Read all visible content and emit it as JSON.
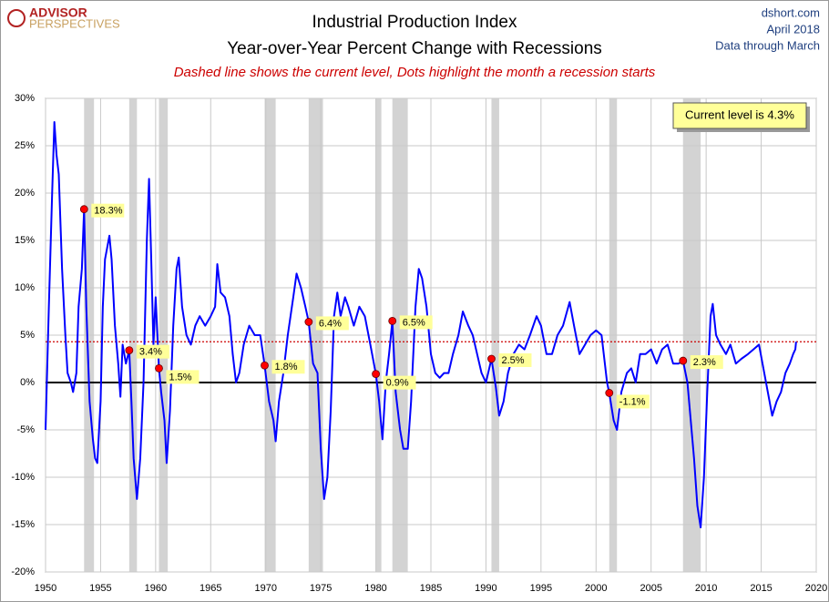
{
  "chart_data": {
    "type": "line",
    "title": "Industrial Production Index",
    "subtitle": "Year-over-Year Percent Change with Recessions",
    "note": "Dashed line shows the current level, Dots highlight the month a recession starts",
    "logo": [
      "ADVISOR",
      "PERSPECTIVES"
    ],
    "source": [
      "dshort.com",
      "April 2018",
      "Data through March"
    ],
    "annotation": "Current level is 4.3%",
    "current_level": 4.3,
    "current_level_color": "#cc0000",
    "color": "#0000ff",
    "grid": true,
    "xlim": [
      1950,
      2020
    ],
    "xticks": [
      1950,
      1955,
      1960,
      1965,
      1970,
      1975,
      1980,
      1985,
      1990,
      1995,
      2000,
      2005,
      2010,
      2015,
      2020
    ],
    "ylim": [
      -20,
      30
    ],
    "yticks": [
      {
        "value": -20,
        "label": "-20%"
      },
      {
        "value": -15,
        "label": "-15%"
      },
      {
        "value": -10,
        "label": "-10%"
      },
      {
        "value": -5,
        "label": "-5%"
      },
      {
        "value": 0,
        "label": "0%"
      },
      {
        "value": 5,
        "label": "5%"
      },
      {
        "value": 10,
        "label": "10%"
      },
      {
        "value": 15,
        "label": "15%"
      },
      {
        "value": 20,
        "label": "20%"
      },
      {
        "value": 25,
        "label": "25%"
      },
      {
        "value": 30,
        "label": "30%"
      }
    ],
    "recessions": [
      [
        1953.5,
        1954.4
      ],
      [
        1957.6,
        1958.3
      ],
      [
        1960.3,
        1961.1
      ],
      [
        1969.9,
        1970.9
      ],
      [
        1973.9,
        1975.2
      ],
      [
        1980.0,
        1980.5
      ],
      [
        1981.5,
        1982.9
      ],
      [
        1990.5,
        1991.2
      ],
      [
        2001.2,
        2001.9
      ],
      [
        2007.9,
        2009.5
      ]
    ],
    "x": [
      1950.0,
      1950.3,
      1950.6,
      1950.8,
      1951.0,
      1951.2,
      1951.5,
      1951.8,
      1952.0,
      1952.3,
      1952.5,
      1952.8,
      1953.0,
      1953.3,
      1953.5,
      1953.7,
      1954.0,
      1954.3,
      1954.5,
      1954.7,
      1955.0,
      1955.2,
      1955.4,
      1955.8,
      1956.0,
      1956.3,
      1956.6,
      1956.8,
      1957.0,
      1957.3,
      1957.6,
      1957.8,
      1958.0,
      1958.3,
      1958.6,
      1958.9,
      1959.2,
      1959.4,
      1959.6,
      1959.8,
      1960.0,
      1960.3,
      1960.5,
      1960.8,
      1961.0,
      1961.3,
      1961.6,
      1961.9,
      1962.1,
      1962.4,
      1962.8,
      1963.2,
      1963.6,
      1964.0,
      1964.5,
      1965.0,
      1965.4,
      1965.6,
      1965.9,
      1966.3,
      1966.7,
      1967.0,
      1967.3,
      1967.6,
      1968.0,
      1968.5,
      1969.0,
      1969.5,
      1969.9,
      1970.3,
      1970.7,
      1970.9,
      1971.2,
      1971.6,
      1972.0,
      1972.5,
      1972.8,
      1973.2,
      1973.6,
      1973.9,
      1974.3,
      1974.7,
      1975.0,
      1975.3,
      1975.6,
      1975.9,
      1976.2,
      1976.5,
      1976.8,
      1977.2,
      1977.5,
      1978.0,
      1978.5,
      1979.0,
      1979.5,
      1980.0,
      1980.3,
      1980.6,
      1980.9,
      1981.2,
      1981.5,
      1981.8,
      1982.2,
      1982.5,
      1982.9,
      1983.2,
      1983.6,
      1983.9,
      1984.2,
      1984.6,
      1985.0,
      1985.4,
      1985.8,
      1986.2,
      1986.6,
      1987.0,
      1987.5,
      1987.9,
      1988.4,
      1988.8,
      1989.2,
      1989.6,
      1990.0,
      1990.5,
      1990.9,
      1991.2,
      1991.6,
      1992.0,
      1992.5,
      1993.0,
      1993.5,
      1994.0,
      1994.6,
      1995.0,
      1995.5,
      1996.0,
      1996.5,
      1997.0,
      1997.6,
      1998.0,
      1998.5,
      1999.0,
      1999.5,
      2000.0,
      2000.5,
      2001.0,
      2001.2,
      2001.6,
      2001.9,
      2002.3,
      2002.8,
      2003.2,
      2003.6,
      2004.0,
      2004.5,
      2005.0,
      2005.5,
      2006.0,
      2006.5,
      2007.0,
      2007.5,
      2007.9,
      2008.3,
      2008.6,
      2008.9,
      2009.2,
      2009.5,
      2009.8,
      2010.1,
      2010.4,
      2010.6,
      2010.9,
      2011.3,
      2011.8,
      2012.2,
      2012.7,
      2013.2,
      2013.8,
      2014.3,
      2014.8,
      2015.2,
      2015.6,
      2016.0,
      2016.4,
      2016.8,
      2017.2,
      2017.6,
      2017.9,
      2018.1,
      2018.17
    ],
    "values": [
      -5,
      8,
      20,
      27.5,
      24,
      22,
      12,
      5,
      1,
      0,
      -1,
      1,
      8,
      12,
      18.3,
      8,
      -2,
      -6,
      -8,
      -8.5,
      -2,
      8,
      13,
      15.5,
      13,
      6,
      2,
      -1.5,
      4,
      2,
      3.4,
      -2,
      -8,
      -12.3,
      -8,
      0,
      15,
      21.5,
      13,
      4,
      9,
      1.5,
      -1,
      -4,
      -8.5,
      -3,
      6,
      12,
      13.2,
      8,
      5,
      4,
      6,
      7,
      6,
      7,
      8,
      12.5,
      9.5,
      9,
      7,
      3,
      0,
      1,
      4,
      6,
      5,
      5,
      1.8,
      -2,
      -4,
      -6.2,
      -2,
      1,
      5,
      9,
      11.5,
      10,
      8,
      6.4,
      2,
      1,
      -7,
      -12.3,
      -10,
      -3,
      7,
      9.5,
      7,
      9,
      8,
      6,
      8,
      7,
      4,
      0.9,
      -2,
      -6,
      0,
      3,
      6.5,
      -1,
      -5,
      -7,
      -7,
      -2,
      8,
      12,
      11,
      8,
      3,
      1,
      0.5,
      1,
      1,
      3,
      5,
      7.5,
      6,
      5,
      3,
      1,
      0,
      2.5,
      -0.5,
      -3.5,
      -2,
      1,
      3,
      4,
      3.5,
      5,
      7,
      6,
      3,
      3,
      5,
      6,
      8.5,
      6,
      3,
      4,
      5,
      5.5,
      5,
      0,
      -1.1,
      -4,
      -5,
      -1,
      1,
      1.5,
      0,
      3,
      3,
      3.5,
      2,
      3.5,
      4,
      2,
      2,
      2.3,
      0,
      -4,
      -8,
      -13,
      -15.3,
      -10,
      -1,
      7,
      8.3,
      5,
      4,
      3,
      4,
      2,
      2.5,
      3,
      3.5,
      4,
      1.5,
      -1,
      -3.5,
      -2,
      -1,
      1,
      2,
      3,
      3.5,
      4.3
    ],
    "markers": {
      "color": "#ff0000",
      "x": [
        1953.5,
        1957.6,
        1960.3,
        1969.9,
        1973.9,
        1980.0,
        1981.5,
        1990.5,
        2001.2,
        2007.9
      ],
      "values": [
        18.3,
        3.4,
        1.5,
        1.8,
        6.4,
        0.9,
        6.5,
        2.5,
        -1.1,
        2.3
      ],
      "value_labels": [
        "18.3%",
        "3.4%",
        "1.5%",
        "1.8%",
        "6.4%",
        "0.9%",
        "6.5%",
        "2.5%",
        "-1.1%",
        "2.3%"
      ]
    }
  }
}
